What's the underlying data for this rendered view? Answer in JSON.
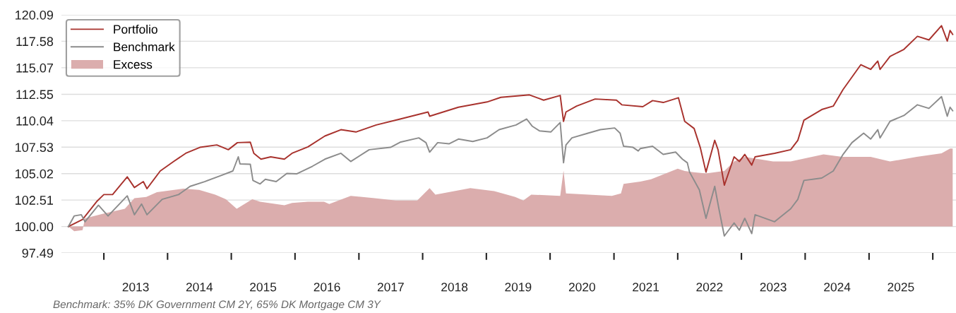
{
  "chart_data": {
    "type": "line",
    "xlim": [
      "2012-05-03",
      "2026-05-14"
    ],
    "ylim": [
      97.49,
      120.09
    ],
    "yticks": [
      {
        "value": 97.49,
        "label": "97.49"
      },
      {
        "value": 100,
        "label": "100.00"
      },
      {
        "value": 102.51,
        "label": "102.51"
      },
      {
        "value": 105.02,
        "label": "105.02"
      },
      {
        "value": 107.53,
        "label": "107.53"
      },
      {
        "value": 110.04,
        "label": "110.04"
      },
      {
        "value": 112.55,
        "label": "112.55"
      },
      {
        "value": 115.07,
        "label": "115.07"
      },
      {
        "value": 117.58,
        "label": "117.58"
      },
      {
        "value": 120.09,
        "label": "120.09"
      }
    ],
    "xticks": [
      {
        "value": "2013-01-01",
        "label": null
      },
      {
        "value": "2013-07-02",
        "label": "2013"
      },
      {
        "value": "2014-01-01",
        "label": null
      },
      {
        "value": "2014-07-02",
        "label": "2014"
      },
      {
        "value": "2015-01-01",
        "label": null
      },
      {
        "value": "2015-07-02",
        "label": "2015"
      },
      {
        "value": "2016-01-01",
        "label": null
      },
      {
        "value": "2016-07-02",
        "label": "2016"
      },
      {
        "value": "2017-01-01",
        "label": null
      },
      {
        "value": "2017-07-02",
        "label": "2017"
      },
      {
        "value": "2018-01-01",
        "label": null
      },
      {
        "value": "2018-07-02",
        "label": "2018"
      },
      {
        "value": "2019-01-01",
        "label": null
      },
      {
        "value": "2019-07-02",
        "label": "2019"
      },
      {
        "value": "2020-01-01",
        "label": null
      },
      {
        "value": "2020-07-02",
        "label": "2020"
      },
      {
        "value": "2021-01-01",
        "label": null
      },
      {
        "value": "2021-07-02",
        "label": "2021"
      },
      {
        "value": "2022-01-01",
        "label": null
      },
      {
        "value": "2022-07-02",
        "label": "2022"
      },
      {
        "value": "2023-01-01",
        "label": null
      },
      {
        "value": "2023-07-02",
        "label": "2023"
      },
      {
        "value": "2024-01-01",
        "label": null
      },
      {
        "value": "2024-07-02",
        "label": "2024"
      },
      {
        "value": "2025-01-01",
        "label": null
      },
      {
        "value": "2025-07-02",
        "label": "2025"
      },
      {
        "value": "2026-01-01",
        "label": null
      }
    ],
    "grid": "y",
    "legend": "top left",
    "annotations": [
      "Benchmark: 35% DK Government CM 2Y, 65% DK Mortgage CM 3Y"
    ],
    "series": [
      {
        "name": "Excess",
        "type": "area",
        "color": "#dbadad",
        "x": [
          "2012-06-12",
          "2012-07-15",
          "2012-09-01",
          "2012-09-15",
          "2013-01-01",
          "2013-05-01",
          "2013-06-25",
          "2013-09-01",
          "2013-11-01",
          "2014-04-01",
          "2014-07-01",
          "2014-10-01",
          "2014-12-01",
          "2015-02-01",
          "2015-05-01",
          "2015-06-15",
          "2015-11-01",
          "2015-12-15",
          "2016-03-15",
          "2016-06-15",
          "2016-07-15",
          "2016-11-15",
          "2017-04-01",
          "2017-08-01",
          "2017-12-01",
          "2018-02-10",
          "2018-03-15",
          "2018-10-01",
          "2019-02-15",
          "2019-06-15",
          "2019-08-01",
          "2019-09-15",
          "2020-02-28",
          "2020-03-18",
          "2020-04-01",
          "2020-12-20",
          "2021-02-10",
          "2021-02-25",
          "2021-06-01",
          "2021-08-01",
          "2022-01-01",
          "2022-02-10",
          "2022-04-01",
          "2022-06-12",
          "2022-09-25",
          "2022-11-20",
          "2023-01-20",
          "2023-07-01",
          "2023-10-10",
          "2024-04-15",
          "2024-08-01",
          "2025-01-10",
          "2025-05-01",
          "2025-10-01",
          "2026-02-20",
          "2026-04-10",
          "2026-04-25"
        ],
        "values": [
          100.0,
          99.55,
          99.66,
          100.78,
          101.23,
          101.68,
          102.69,
          102.8,
          103.25,
          103.59,
          103.48,
          103.03,
          102.58,
          101.68,
          102.58,
          102.35,
          102.02,
          102.24,
          102.35,
          102.35,
          102.13,
          102.91,
          102.69,
          102.47,
          102.47,
          103.65,
          103.03,
          103.65,
          103.36,
          102.8,
          102.47,
          103.03,
          102.91,
          105.31,
          103.14,
          102.91,
          103.14,
          104.04,
          104.26,
          104.48,
          105.49,
          105.27,
          105.16,
          105.04,
          105.27,
          106.17,
          106.61,
          106.17,
          106.17,
          106.84,
          106.61,
          106.61,
          106.17,
          106.61,
          106.95,
          107.4,
          107.4
        ]
      },
      {
        "name": "Portfolio",
        "color": "#a8322d",
        "x": [
          "2012-06-12",
          "2012-09-01",
          "2012-11-20",
          "2013-01-01",
          "2013-02-20",
          "2013-05-15",
          "2013-06-25",
          "2013-08-15",
          "2013-09-05",
          "2013-11-20",
          "2014-02-05",
          "2014-04-15",
          "2014-07-05",
          "2014-10-10",
          "2014-12-15",
          "2015-02-05",
          "2015-04-20",
          "2015-05-10",
          "2015-06-20",
          "2015-08-15",
          "2015-11-01",
          "2015-12-15",
          "2016-03-15",
          "2016-06-20",
          "2016-09-20",
          "2016-12-15",
          "2017-04-10",
          "2017-08-25",
          "2018-02-01",
          "2018-02-10",
          "2018-07-25",
          "2019-01-05",
          "2019-03-25",
          "2019-09-05",
          "2019-11-25",
          "2020-02-28",
          "2020-03-18",
          "2020-04-01",
          "2020-06-01",
          "2020-09-15",
          "2021-01-15",
          "2021-02-15",
          "2021-06-15",
          "2021-08-10",
          "2021-10-10",
          "2022-01-05",
          "2022-02-10",
          "2022-04-05",
          "2022-05-10",
          "2022-06-12",
          "2022-08-01",
          "2022-08-20",
          "2022-09-25",
          "2022-11-20",
          "2022-12-20",
          "2023-01-20",
          "2023-03-01",
          "2023-03-20",
          "2023-07-10",
          "2023-10-10",
          "2023-11-20",
          "2023-12-25",
          "2024-04-05",
          "2024-06-10",
          "2024-08-05",
          "2024-11-15",
          "2025-01-10",
          "2025-02-20",
          "2025-03-05",
          "2025-05-01",
          "2025-07-20",
          "2025-10-05",
          "2025-12-10",
          "2026-02-20",
          "2026-03-25",
          "2026-04-10",
          "2026-04-25"
        ],
        "values": [
          100.0,
          100.67,
          102.35,
          103.03,
          103.03,
          104.71,
          103.7,
          104.26,
          103.59,
          105.27,
          106.17,
          106.95,
          107.51,
          107.74,
          107.29,
          107.96,
          108.0,
          106.95,
          106.39,
          106.61,
          106.39,
          106.95,
          107.56,
          108.59,
          109.19,
          108.97,
          109.64,
          110.2,
          110.87,
          110.47,
          111.32,
          111.82,
          112.26,
          112.49,
          111.99,
          112.44,
          109.98,
          110.87,
          111.43,
          112.1,
          111.99,
          111.55,
          111.37,
          111.95,
          111.77,
          112.22,
          109.98,
          109.3,
          107.51,
          105.16,
          108.18,
          107.29,
          103.92,
          106.61,
          106.17,
          106.84,
          105.83,
          106.61,
          106.95,
          107.29,
          108.18,
          110.09,
          111.1,
          111.43,
          113.0,
          115.36,
          114.91,
          115.7,
          114.91,
          116.14,
          116.82,
          118.05,
          117.71,
          119.06,
          117.6,
          118.61,
          118.23
        ]
      },
      {
        "name": "Benchmark",
        "color": "#8c8c8c",
        "x": [
          "2012-06-12",
          "2012-07-15",
          "2012-08-25",
          "2012-09-15",
          "2012-12-01",
          "2013-01-25",
          "2013-05-15",
          "2013-06-25",
          "2013-08-05",
          "2013-09-05",
          "2013-12-01",
          "2014-03-05",
          "2014-05-10",
          "2014-08-01",
          "2014-11-01",
          "2015-01-10",
          "2015-02-10",
          "2015-02-20",
          "2015-04-20",
          "2015-05-05",
          "2015-06-15",
          "2015-07-15",
          "2015-09-15",
          "2015-11-15",
          "2016-01-10",
          "2016-04-10",
          "2016-06-20",
          "2016-09-20",
          "2016-11-15",
          "2017-03-01",
          "2017-07-01",
          "2017-08-25",
          "2017-12-10",
          "2018-01-20",
          "2018-02-10",
          "2018-03-28",
          "2018-06-01",
          "2018-07-25",
          "2018-10-15",
          "2019-01-05",
          "2019-03-15",
          "2019-06-20",
          "2019-08-20",
          "2019-09-20",
          "2019-11-01",
          "2020-01-05",
          "2020-02-28",
          "2020-03-18",
          "2020-04-01",
          "2020-05-05",
          "2020-08-05",
          "2020-10-15",
          "2021-01-05",
          "2021-02-05",
          "2021-02-25",
          "2021-04-20",
          "2021-05-20",
          "2021-06-01",
          "2021-08-10",
          "2021-10-10",
          "2021-12-20",
          "2022-01-28",
          "2022-02-25",
          "2022-03-10",
          "2022-05-05",
          "2022-06-12",
          "2022-08-01",
          "2022-08-25",
          "2022-09-25",
          "2022-11-20",
          "2022-12-20",
          "2023-01-20",
          "2023-03-01",
          "2023-03-20",
          "2023-07-10",
          "2023-10-10",
          "2023-11-20",
          "2023-12-25",
          "2024-04-05",
          "2024-06-10",
          "2024-08-05",
          "2024-09-25",
          "2024-12-01",
          "2025-01-10",
          "2025-02-20",
          "2025-03-05",
          "2025-05-01",
          "2025-07-20",
          "2025-10-05",
          "2025-12-10",
          "2026-02-20",
          "2026-03-25",
          "2026-04-10",
          "2026-04-25"
        ],
        "values": [
          100.0,
          101.0,
          101.12,
          100.45,
          102.02,
          101.0,
          102.91,
          101.12,
          102.13,
          101.12,
          102.58,
          103.03,
          103.81,
          104.26,
          104.82,
          105.27,
          106.61,
          105.94,
          105.9,
          104.37,
          104.04,
          104.48,
          104.26,
          105.04,
          105.0,
          105.72,
          106.39,
          106.95,
          106.17,
          107.29,
          107.51,
          108.0,
          108.41,
          107.96,
          107.06,
          107.96,
          107.85,
          108.3,
          108.07,
          108.41,
          109.19,
          109.64,
          110.2,
          109.53,
          109.08,
          108.97,
          109.87,
          106.05,
          107.74,
          108.41,
          108.86,
          109.19,
          109.35,
          108.86,
          107.62,
          107.51,
          107.17,
          107.4,
          107.62,
          106.84,
          107.06,
          106.39,
          106.05,
          105.16,
          103.48,
          100.78,
          103.81,
          101.68,
          99.1,
          100.34,
          99.66,
          100.78,
          99.33,
          101.12,
          100.45,
          101.68,
          102.58,
          104.37,
          104.6,
          105.27,
          106.84,
          107.96,
          108.86,
          108.3,
          109.19,
          108.41,
          109.98,
          110.54,
          111.55,
          111.21,
          112.33,
          110.47,
          111.32,
          110.99
        ]
      }
    ]
  }
}
